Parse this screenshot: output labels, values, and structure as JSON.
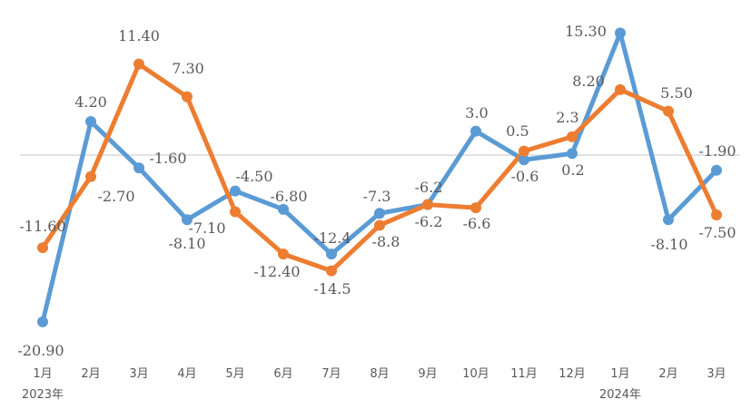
{
  "chart_data": {
    "type": "line",
    "categories": [
      "1月",
      "2月",
      "3月",
      "4月",
      "5月",
      "6月",
      "7月",
      "8月",
      "9月",
      "10月",
      "11月",
      "12月",
      "1月",
      "2月",
      "3月"
    ],
    "year_labels": [
      {
        "index": 0,
        "label": "2023年"
      },
      {
        "index": 12,
        "label": "2024年"
      }
    ],
    "series": [
      {
        "color": "#5B9BD5",
        "values": [
          -20.9,
          4.2,
          -1.6,
          -8.1,
          -4.5,
          -6.8,
          -12.4,
          -7.3,
          -6.2,
          3.0,
          -0.6,
          0.2,
          15.3,
          -8.1,
          -1.9
        ],
        "labels": [
          "-20.90",
          "4.20",
          "-1.60",
          "-8.10",
          "-4.50",
          "-6.80",
          "-12.4",
          "-7.3",
          "-6.2",
          "3.0",
          "-0.6",
          "0.2",
          "15.30",
          "-8.10",
          "-1.90"
        ]
      },
      {
        "color": "#ED7D31",
        "values": [
          -11.6,
          -2.7,
          11.4,
          7.3,
          -7.1,
          -12.4,
          -14.5,
          -8.8,
          -6.2,
          -6.6,
          0.5,
          2.3,
          8.2,
          5.5,
          -7.5
        ],
        "labels": [
          "-11.60",
          "-2.70",
          "11.40",
          "7.30",
          "-7.10",
          "-12.40",
          "-14.5",
          "-8.8",
          "-6.2",
          "-6.6",
          "0.5",
          "2.3",
          "8.20",
          "5.50",
          "-7.50"
        ]
      }
    ],
    "zero_line": true,
    "grid": false,
    "legend": "none"
  }
}
